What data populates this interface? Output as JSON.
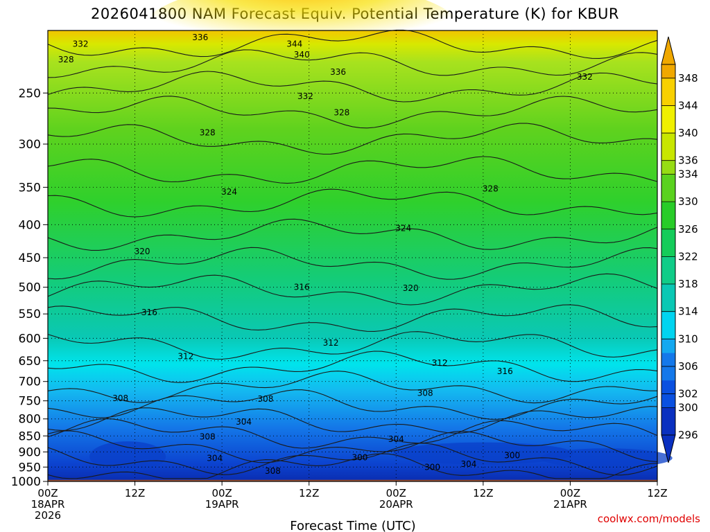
{
  "title": "2026041800 NAM Forecast Equiv. Potential Temperature (K) for KBUR",
  "credit": "coolwx.com/models",
  "chart_data": {
    "type": "heatmap",
    "title": "2026041800 NAM Forecast Equiv. Potential Temperature (K) for KBUR",
    "xlabel": "Forecast Time (UTC)",
    "ylabel": "",
    "x_ticks": [
      {
        "hour": 0,
        "lines": [
          "00Z",
          "18APR",
          "2026"
        ]
      },
      {
        "hour": 12,
        "lines": [
          "12Z"
        ]
      },
      {
        "hour": 24,
        "lines": [
          "00Z",
          "19APR"
        ]
      },
      {
        "hour": 36,
        "lines": [
          "12Z"
        ]
      },
      {
        "hour": 48,
        "lines": [
          "00Z",
          "20APR"
        ]
      },
      {
        "hour": 60,
        "lines": [
          "12Z"
        ]
      },
      {
        "hour": 72,
        "lines": [
          "00Z",
          "21APR"
        ]
      },
      {
        "hour": 84,
        "lines": [
          "12Z"
        ]
      }
    ],
    "xlim": [
      0,
      84
    ],
    "y_ticks": [
      250,
      300,
      350,
      400,
      450,
      500,
      550,
      600,
      650,
      700,
      750,
      800,
      850,
      900,
      950,
      1000
    ],
    "ylim": [
      1000,
      200
    ],
    "y_scale": "log",
    "grid": true,
    "surface_pressure": 975,
    "colorbar": {
      "levels": [
        296,
        298,
        300,
        302,
        304,
        306,
        308,
        310,
        312,
        314,
        316,
        318,
        320,
        322,
        324,
        326,
        328,
        330,
        332,
        334,
        336,
        338,
        340,
        342,
        344,
        346,
        348,
        350
      ],
      "labels": [
        296,
        300,
        302,
        306,
        310,
        314,
        318,
        322,
        326,
        330,
        334,
        336,
        340,
        344,
        348
      ]
    },
    "contour_labels": [
      {
        "value": 336,
        "hour": 21,
        "p": 205
      },
      {
        "value": 332,
        "hour": 4.5,
        "p": 210
      },
      {
        "value": 344,
        "hour": 34,
        "p": 210
      },
      {
        "value": 340,
        "hour": 35,
        "p": 218
      },
      {
        "value": 328,
        "hour": 2.5,
        "p": 222
      },
      {
        "value": 336,
        "hour": 40,
        "p": 232
      },
      {
        "value": 332,
        "hour": 74,
        "p": 236
      },
      {
        "value": 332,
        "hour": 35.5,
        "p": 253
      },
      {
        "value": 328,
        "hour": 40.5,
        "p": 268
      },
      {
        "value": 328,
        "hour": 22,
        "p": 288
      },
      {
        "value": 328,
        "hour": 61,
        "p": 352
      },
      {
        "value": 324,
        "hour": 25,
        "p": 356
      },
      {
        "value": 324,
        "hour": 49,
        "p": 405
      },
      {
        "value": 320,
        "hour": 13,
        "p": 440
      },
      {
        "value": 316,
        "hour": 35,
        "p": 500
      },
      {
        "value": 320,
        "hour": 50,
        "p": 502
      },
      {
        "value": 316,
        "hour": 14,
        "p": 547
      },
      {
        "value": 312,
        "hour": 39,
        "p": 610
      },
      {
        "value": 312,
        "hour": 19,
        "p": 640
      },
      {
        "value": 316,
        "hour": 63,
        "p": 675
      },
      {
        "value": 312,
        "hour": 54,
        "p": 655
      },
      {
        "value": 308,
        "hour": 10,
        "p": 743
      },
      {
        "value": 308,
        "hour": 30,
        "p": 745
      },
      {
        "value": 308,
        "hour": 52,
        "p": 730
      },
      {
        "value": 304,
        "hour": 27,
        "p": 808
      },
      {
        "value": 308,
        "hour": 22,
        "p": 853
      },
      {
        "value": 304,
        "hour": 48,
        "p": 860
      },
      {
        "value": 300,
        "hour": 43,
        "p": 918
      },
      {
        "value": 304,
        "hour": 23,
        "p": 920
      },
      {
        "value": 300,
        "hour": 64,
        "p": 912
      },
      {
        "value": 300,
        "hour": 53,
        "p": 950
      },
      {
        "value": 304,
        "hour": 58,
        "p": 940
      },
      {
        "value": 308,
        "hour": 31,
        "p": 963
      }
    ]
  }
}
